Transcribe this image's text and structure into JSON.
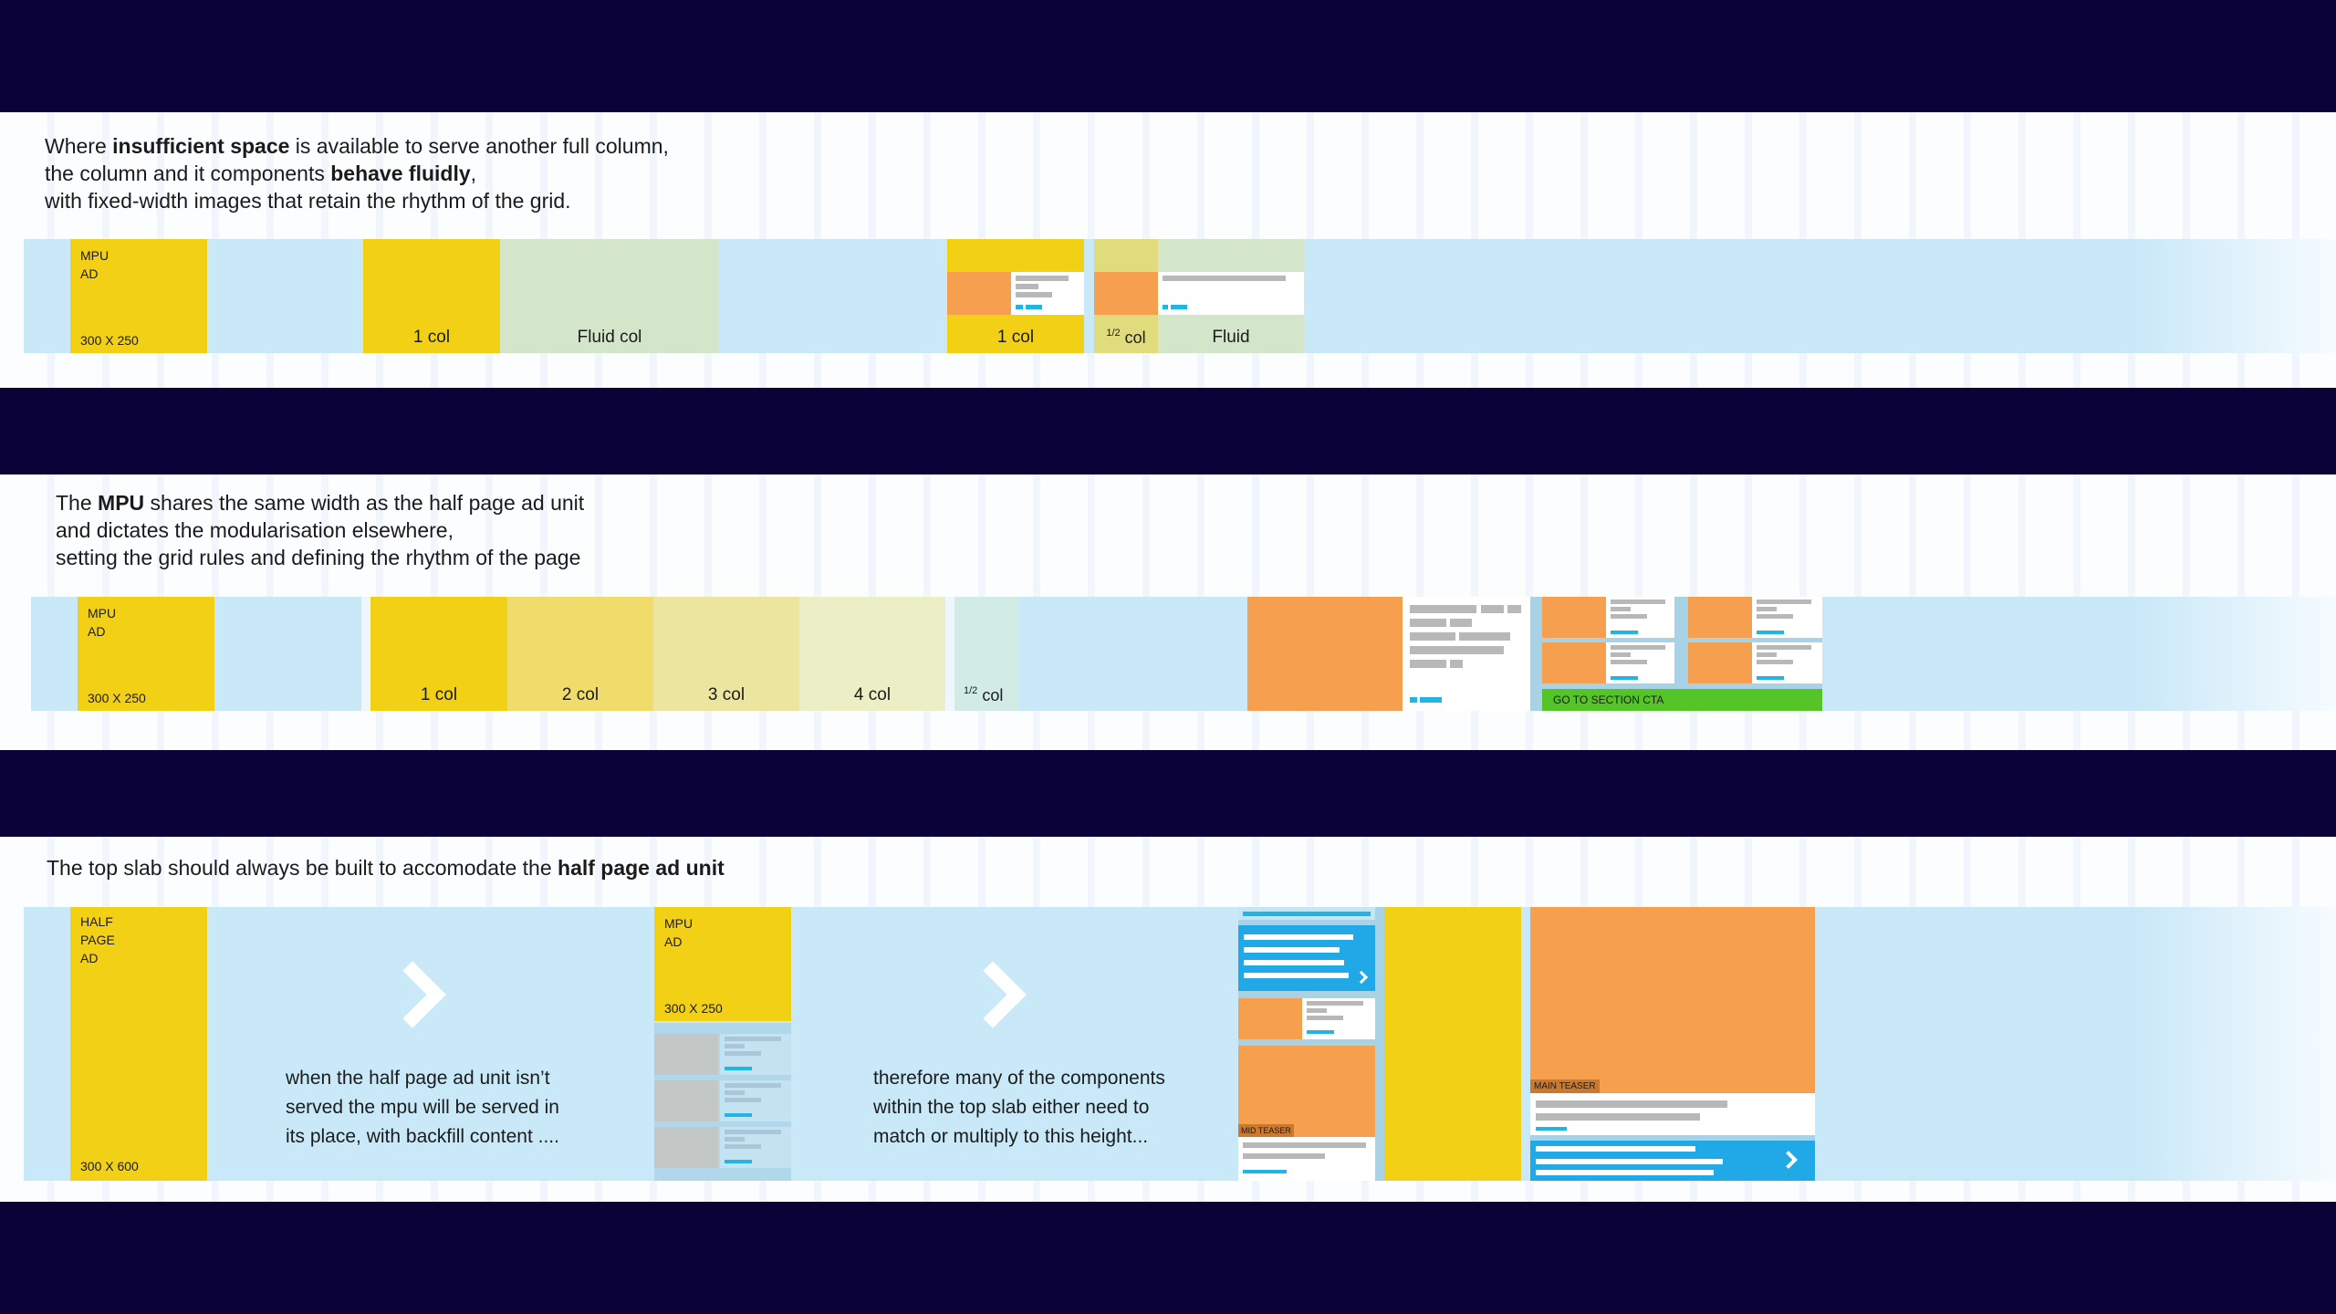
{
  "colors": {
    "background": "#0b0338",
    "panel": "#fbfdff",
    "strip": "#c9e8f8",
    "ad_yellow": "#f2d016",
    "teaser_orange": "#f59f4f",
    "fluid_green": "#d3e6c9",
    "cta_green": "#55c427",
    "cyan": "#21b5e6"
  },
  "section1": {
    "text_pre1": "Where ",
    "text_bold1": "insufficient space",
    "text_post1": " is available to serve another full column,",
    "text_pre2": "the column and it components ",
    "text_bold2": "behave fluidly",
    "text_post2": ",",
    "text_line3": "with fixed-width images that retain the rhythm of the grid.",
    "mpu_label_1": "MPU",
    "mpu_label_2": "AD",
    "mpu_size": "300 X 250",
    "col1": "1 col",
    "fluid_col": "Fluid col",
    "col1b": "1 col",
    "half_sup": "1/2",
    "half_col": "col",
    "fluid": "Fluid"
  },
  "section2": {
    "text_pre": "The ",
    "text_bold": "MPU",
    "text_post": " shares the same width as the half page ad unit",
    "text_line2": "and dictates the modularisation elsewhere,",
    "text_line3": "setting the grid rules and defining the rhythm of the page",
    "mpu_label_1": "MPU",
    "mpu_label_2": "AD",
    "mpu_size": "300 X 250",
    "cols": [
      "1 col",
      "2 col",
      "3 col",
      "4 col"
    ],
    "half_sup": "1/2",
    "half_col": "col",
    "cta": "GO TO SECTION CTA"
  },
  "section3": {
    "text_pre": "The top slab should always be built to accomodate the ",
    "text_bold": "half page ad unit",
    "hpa_1": "HALF",
    "hpa_2": "PAGE",
    "hpa_3": "AD",
    "hpa_size": "300 X 600",
    "note1_l1": "when the half page ad unit isn’t",
    "note1_l2": "served the mpu will be served in",
    "note1_l3": "its place, with backfill content ....",
    "mpu_label_1": "MPU",
    "mpu_label_2": "AD",
    "mpu_size": "300 X 250",
    "note2_l1": "therefore many of the components",
    "note2_l2": "within the top slab either need to",
    "note2_l3": "match or multiply to this height...",
    "mid_teaser": "MID TEASER",
    "main_teaser": "MAIN TEASER"
  }
}
